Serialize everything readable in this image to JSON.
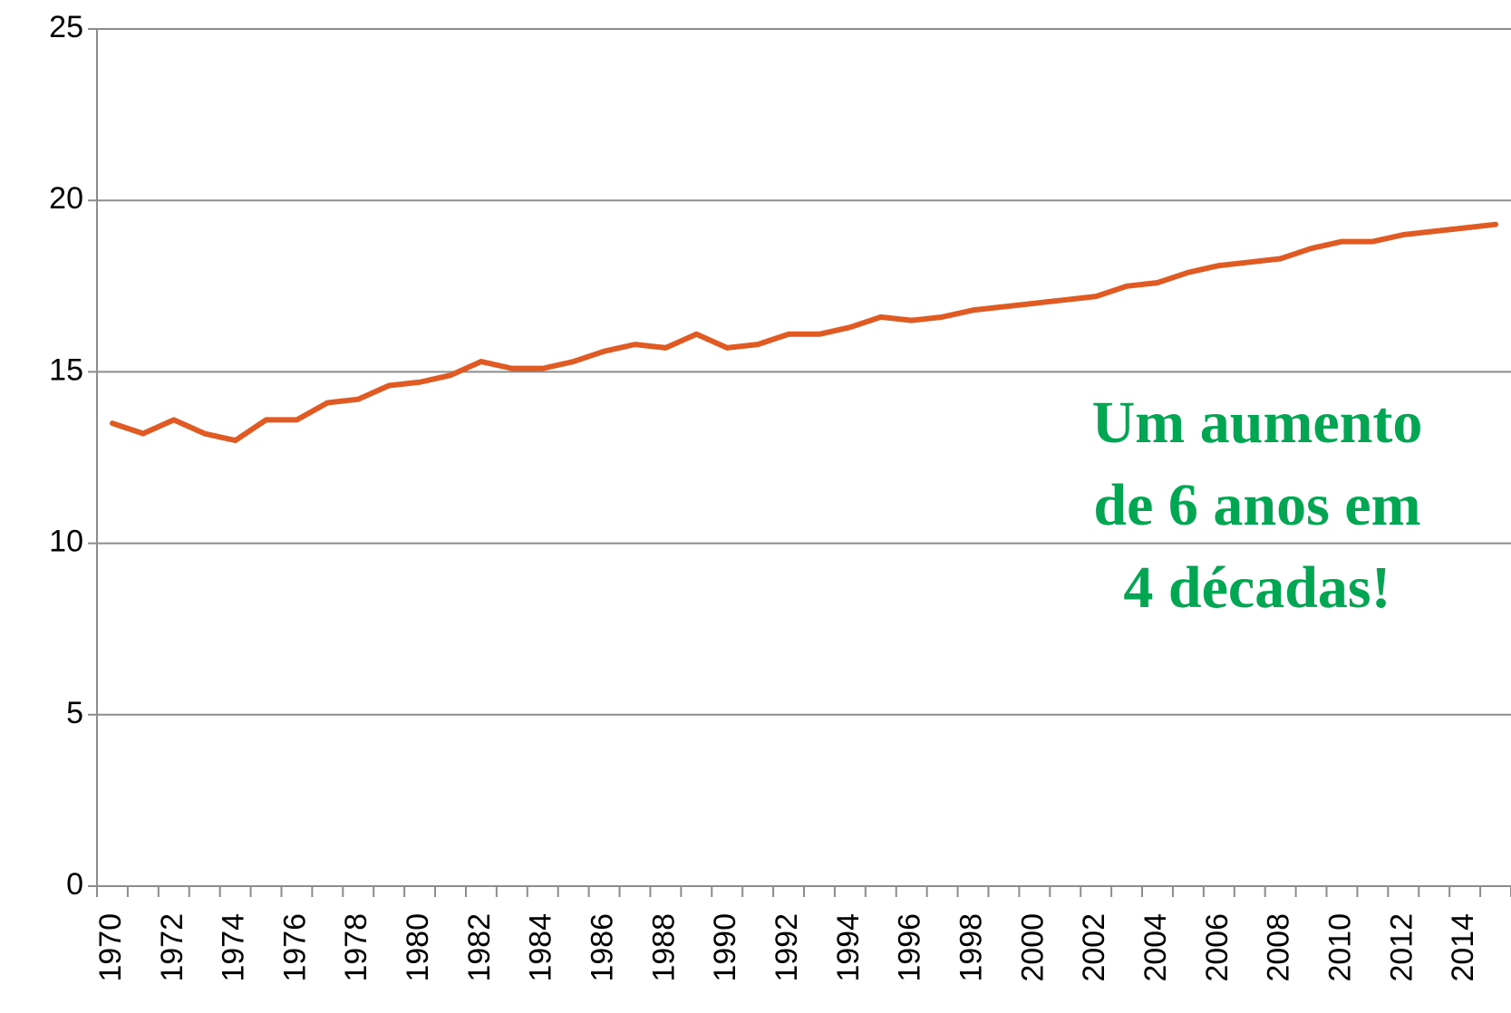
{
  "chart_data": {
    "type": "line",
    "categories": [
      "1970",
      null,
      "1972",
      null,
      "1974",
      null,
      "1976",
      null,
      "1978",
      null,
      "1980",
      null,
      "1982",
      null,
      "1984",
      null,
      "1986",
      null,
      "1988",
      null,
      "1990",
      null,
      "1992",
      null,
      "1994",
      null,
      "1996",
      null,
      "1998",
      null,
      "2000",
      null,
      "2002",
      null,
      "2004",
      null,
      "2006",
      null,
      "2008",
      null,
      "2010",
      null,
      "2012",
      null,
      "2014",
      null
    ],
    "series": [
      {
        "name": null,
        "color": "#e05a23",
        "values": [
          13.5,
          13.2,
          13.6,
          13.2,
          13.0,
          13.6,
          13.6,
          14.1,
          14.2,
          14.6,
          14.7,
          14.9,
          15.3,
          15.1,
          15.1,
          15.3,
          15.6,
          15.8,
          15.7,
          16.1,
          15.7,
          15.8,
          16.1,
          16.1,
          16.3,
          16.6,
          16.5,
          16.6,
          16.8,
          16.9,
          17.0,
          17.1,
          17.2,
          17.5,
          17.6,
          17.9,
          18.1,
          18.2,
          18.3,
          18.6,
          18.8,
          18.8,
          19.0,
          19.1,
          19.2,
          19.3
        ]
      }
    ],
    "ylim": [
      0,
      25
    ],
    "yticks": [
      0,
      5,
      10,
      15,
      20,
      25
    ],
    "grid": true,
    "annotation": {
      "lines": [
        "Um aumento",
        "de 6 anos em",
        "4 décadas!"
      ],
      "color": "#00a651"
    }
  }
}
